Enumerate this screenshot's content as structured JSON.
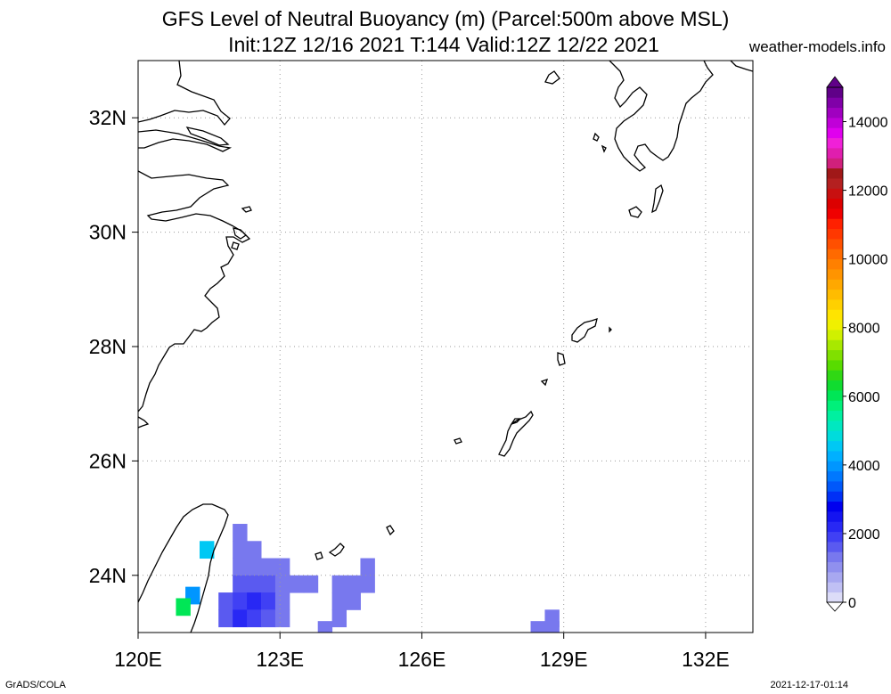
{
  "header": {
    "title_line1": "GFS Level of Neutral Buoyancy (m) (Parcel:500m above MSL)",
    "title_line2": "Init:12Z 12/16 2021 T:144 Valid:12Z 12/22 2021",
    "site": "weather-models.info"
  },
  "footer": {
    "credit": "GrADS/COLA",
    "timestamp": "2021-12-17-01:14"
  },
  "map": {
    "lon_range": [
      120,
      133
    ],
    "lat_range": [
      23,
      33
    ],
    "lon_ticks": [
      {
        "value": 120,
        "label": "120E"
      },
      {
        "value": 123,
        "label": "123E"
      },
      {
        "value": 126,
        "label": "126E"
      },
      {
        "value": 129,
        "label": "129E"
      },
      {
        "value": 132,
        "label": "132E"
      }
    ],
    "lat_ticks": [
      {
        "value": 24,
        "label": "24N"
      },
      {
        "value": 26,
        "label": "26N"
      },
      {
        "value": 28,
        "label": "28N"
      },
      {
        "value": 30,
        "label": "30N"
      },
      {
        "value": 32,
        "label": "32N"
      }
    ],
    "grid": "dotted",
    "cells": [
      {
        "lon": 122.0,
        "lat": 24.6,
        "v": 1400
      },
      {
        "lon": 122.0,
        "lat": 24.3,
        "v": 1300
      },
      {
        "lon": 122.3,
        "lat": 24.3,
        "v": 1300
      },
      {
        "lon": 122.0,
        "lat": 24.0,
        "v": 1200
      },
      {
        "lon": 122.3,
        "lat": 24.0,
        "v": 1300
      },
      {
        "lon": 122.6,
        "lat": 24.0,
        "v": 1300
      },
      {
        "lon": 122.9,
        "lat": 24.0,
        "v": 1200
      },
      {
        "lon": 122.0,
        "lat": 23.7,
        "v": 1500
      },
      {
        "lon": 122.3,
        "lat": 23.7,
        "v": 1700
      },
      {
        "lon": 122.6,
        "lat": 23.7,
        "v": 1500
      },
      {
        "lon": 122.9,
        "lat": 23.7,
        "v": 1400
      },
      {
        "lon": 123.2,
        "lat": 23.7,
        "v": 1200
      },
      {
        "lon": 123.5,
        "lat": 23.7,
        "v": 1200
      },
      {
        "lon": 121.7,
        "lat": 23.4,
        "v": 1500
      },
      {
        "lon": 122.0,
        "lat": 23.4,
        "v": 2000
      },
      {
        "lon": 122.3,
        "lat": 23.4,
        "v": 2300
      },
      {
        "lon": 122.6,
        "lat": 23.4,
        "v": 1800
      },
      {
        "lon": 122.9,
        "lat": 23.4,
        "v": 1400
      },
      {
        "lon": 121.7,
        "lat": 23.1,
        "v": 1600
      },
      {
        "lon": 122.0,
        "lat": 23.1,
        "v": 2200
      },
      {
        "lon": 122.3,
        "lat": 23.1,
        "v": 2000
      },
      {
        "lon": 122.6,
        "lat": 23.1,
        "v": 1700
      },
      {
        "lon": 122.9,
        "lat": 23.1,
        "v": 1400
      },
      {
        "lon": 124.7,
        "lat": 24.0,
        "v": 1300
      },
      {
        "lon": 124.1,
        "lat": 23.7,
        "v": 1300
      },
      {
        "lon": 124.4,
        "lat": 23.7,
        "v": 1300
      },
      {
        "lon": 124.7,
        "lat": 23.7,
        "v": 1300
      },
      {
        "lon": 124.1,
        "lat": 23.4,
        "v": 1300
      },
      {
        "lon": 124.4,
        "lat": 23.4,
        "v": 1300
      },
      {
        "lon": 124.1,
        "lat": 23.1,
        "v": 1300
      },
      {
        "lon": 123.8,
        "lat": 22.9,
        "v": 1300
      },
      {
        "lon": 128.6,
        "lat": 23.1,
        "v": 1300
      },
      {
        "lon": 128.3,
        "lat": 22.9,
        "v": 1300
      },
      {
        "lon": 128.6,
        "lat": 22.9,
        "v": 1300
      },
      {
        "lon": 121.3,
        "lat": 24.3,
        "v": 4500
      },
      {
        "lon": 121.0,
        "lat": 23.5,
        "v": 4000
      },
      {
        "lon": 120.8,
        "lat": 23.3,
        "v": 6000
      }
    ]
  },
  "colorbar": {
    "min": 0,
    "max": 15000,
    "labels": [
      {
        "value": 0,
        "label": "0"
      },
      {
        "value": 2000,
        "label": "2000"
      },
      {
        "value": 4000,
        "label": "4000"
      },
      {
        "value": 6000,
        "label": "6000"
      },
      {
        "value": 8000,
        "label": "8000"
      },
      {
        "value": 10000,
        "label": "10000"
      },
      {
        "value": 12000,
        "label": "12000"
      },
      {
        "value": 14000,
        "label": "14000"
      }
    ],
    "colors": [
      "#dcdcf8",
      "#c0c0f4",
      "#a8a8f0",
      "#9090ee",
      "#7878ee",
      "#5a5af0",
      "#4040f4",
      "#2828f4",
      "#1414f0",
      "#0000ee",
      "#0030f6",
      "#0058fa",
      "#0078fe",
      "#0096ff",
      "#00b0ff",
      "#00c8f4",
      "#00dcdc",
      "#00e8c0",
      "#00f0a0",
      "#00f07a",
      "#00e656",
      "#10dc30",
      "#30d814",
      "#58dc00",
      "#80e000",
      "#a8e800",
      "#d0f000",
      "#f0f000",
      "#ffe400",
      "#ffd000",
      "#ffbc00",
      "#ffa800",
      "#ff9400",
      "#ff8000",
      "#ff6a00",
      "#ff5000",
      "#ff3800",
      "#ff2000",
      "#f00000",
      "#dc0000",
      "#c81010",
      "#b42020",
      "#a01818",
      "#d0207c",
      "#e01eae",
      "#f020d8",
      "#e000ee",
      "#c000d8",
      "#a000c0",
      "#8000a8",
      "#600088"
    ]
  }
}
